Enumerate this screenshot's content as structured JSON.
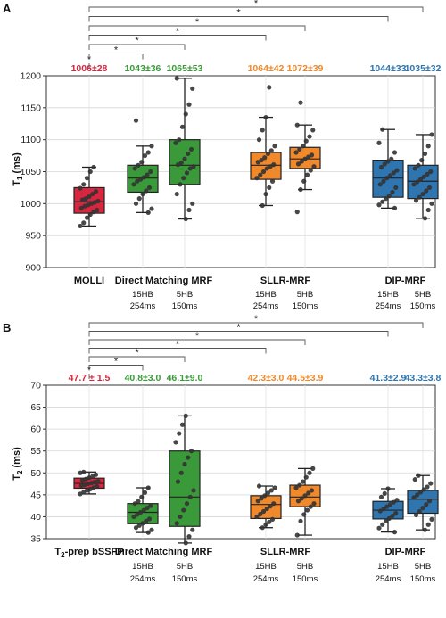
{
  "chart_data": [
    {
      "type": "box",
      "panel_label": "A",
      "ylabel_main": "T",
      "ylabel_sub": "1",
      "ylabel_unit": " (ms)",
      "ylim": [
        900,
        1200
      ],
      "yticks": [
        "900",
        "950",
        "1000",
        "1050",
        "1100",
        "1150",
        "1200"
      ],
      "grid": true,
      "groups": [
        {
          "label": "MOLLI"
        },
        {
          "label": "Direct Matching MRF"
        },
        {
          "label": "SLLR-MRF"
        },
        {
          "label": "DIP-MRF"
        }
      ],
      "boxes": [
        {
          "group": 0,
          "sub1": "",
          "sub2": "",
          "value_label": "1006±28",
          "color": "#d7263d",
          "whisker_low": 965,
          "q1": 985,
          "median": 1003,
          "q3": 1025,
          "whisker_high": 1057,
          "points": [
            965,
            970,
            978,
            983,
            987,
            990,
            993,
            996,
            998,
            1000,
            1002,
            1004,
            1006,
            1008,
            1011,
            1015,
            1019,
            1024,
            1030,
            1040,
            1050,
            1057
          ]
        },
        {
          "group": 1,
          "sub1": "15HB",
          "sub2": "254ms",
          "value_label": "1043±36",
          "color": "#3a9a3a",
          "whisker_low": 986,
          "q1": 1018,
          "median": 1040,
          "q3": 1060,
          "whisker_high": 1090,
          "points": [
            986,
            992,
            1000,
            1008,
            1015,
            1020,
            1025,
            1030,
            1035,
            1038,
            1041,
            1045,
            1050,
            1055,
            1060,
            1065,
            1075,
            1080,
            1090,
            1130
          ]
        },
        {
          "group": 1,
          "sub1": "5HB",
          "sub2": "150ms",
          "value_label": "1065±53",
          "color": "#3a9a3a",
          "whisker_low": 976,
          "q1": 1030,
          "median": 1060,
          "q3": 1100,
          "whisker_high": 1196,
          "points": [
            976,
            990,
            1000,
            1015,
            1030,
            1040,
            1048,
            1055,
            1058,
            1061,
            1064,
            1070,
            1078,
            1085,
            1095,
            1100,
            1120,
            1140,
            1155,
            1180,
            1196
          ]
        },
        {
          "group": 2,
          "sub1": "15HB",
          "sub2": "254ms",
          "value_label": "1064±42",
          "color": "#f0892b",
          "whisker_low": 997,
          "q1": 1038,
          "median": 1060,
          "q3": 1080,
          "whisker_high": 1135,
          "points": [
            997,
            1015,
            1025,
            1035,
            1040,
            1045,
            1050,
            1055,
            1058,
            1061,
            1065,
            1068,
            1072,
            1078,
            1083,
            1090,
            1100,
            1115,
            1135,
            1182
          ]
        },
        {
          "group": 2,
          "sub1": "5HB",
          "sub2": "150ms",
          "value_label": "1072±39",
          "color": "#f0892b",
          "whisker_low": 1022,
          "q1": 1055,
          "median": 1070,
          "q3": 1088,
          "whisker_high": 1123,
          "points": [
            987,
            1022,
            1035,
            1045,
            1052,
            1058,
            1062,
            1066,
            1070,
            1073,
            1076,
            1080,
            1085,
            1090,
            1098,
            1105,
            1115,
            1123,
            1158
          ]
        },
        {
          "group": 3,
          "sub1": "15HB",
          "sub2": "254ms",
          "value_label": "1044±33",
          "color": "#2f76b0",
          "whisker_low": 993,
          "q1": 1010,
          "median": 1040,
          "q3": 1068,
          "whisker_high": 1116,
          "points": [
            993,
            998,
            1003,
            1008,
            1012,
            1018,
            1025,
            1030,
            1035,
            1040,
            1044,
            1048,
            1052,
            1057,
            1062,
            1066,
            1070,
            1080,
            1095,
            1116
          ]
        },
        {
          "group": 3,
          "sub1": "5HB",
          "sub2": "150ms",
          "value_label": "1035±32",
          "color": "#2f76b0",
          "whisker_low": 977,
          "q1": 1008,
          "median": 1035,
          "q3": 1060,
          "whisker_high": 1108,
          "points": [
            977,
            990,
            1000,
            1005,
            1010,
            1015,
            1020,
            1025,
            1030,
            1034,
            1038,
            1042,
            1046,
            1050,
            1055,
            1060,
            1068,
            1078,
            1090,
            1108
          ]
        }
      ],
      "brackets": [
        {
          "from": 0,
          "to": 1,
          "label": "*"
        },
        {
          "from": 0,
          "to": 2,
          "label": "*"
        },
        {
          "from": 0,
          "to": 3,
          "label": "*"
        },
        {
          "from": 0,
          "to": 4,
          "label": "*"
        },
        {
          "from": 0,
          "to": 5,
          "label": "*"
        },
        {
          "from": 0,
          "to": 6,
          "label": "*"
        },
        {
          "from": 0,
          "to": 7,
          "label": "*"
        }
      ]
    },
    {
      "type": "box",
      "panel_label": "B",
      "ylabel_main": "T",
      "ylabel_sub": "2",
      "ylabel_unit": " (ms)",
      "ylim": [
        35,
        70
      ],
      "yticks": [
        "35",
        "40",
        "45",
        "50",
        "55",
        "60",
        "65",
        "70"
      ],
      "grid": true,
      "groups": [
        {
          "label": "T",
          "label_sub": "2",
          "label_rest": "-prep bSSFP"
        },
        {
          "label": "Direct Matching MRF"
        },
        {
          "label": "SLLR-MRF"
        },
        {
          "label": "DIP-MRF"
        }
      ],
      "boxes": [
        {
          "group": 0,
          "sub1": "",
          "sub2": "",
          "value_label": "47.7 ± 1.5",
          "color": "#d7263d",
          "whisker_low": 45.2,
          "q1": 46.5,
          "median": 47.6,
          "q3": 48.8,
          "whisker_high": 50.2,
          "points": [
            45.2,
            45.6,
            46.0,
            46.3,
            46.6,
            46.9,
            47.1,
            47.3,
            47.5,
            47.7,
            47.9,
            48.1,
            48.3,
            48.6,
            48.9,
            49.2,
            49.6,
            50.0,
            50.2
          ]
        },
        {
          "group": 1,
          "sub1": "15HB",
          "sub2": "254ms",
          "value_label": "40.8±3.0",
          "color": "#3a9a3a",
          "whisker_low": 36.4,
          "q1": 38.4,
          "median": 41.0,
          "q3": 43.0,
          "whisker_high": 46.6,
          "points": [
            36.4,
            37.0,
            37.5,
            38.0,
            38.5,
            39.0,
            39.5,
            40.0,
            40.5,
            41.0,
            41.5,
            42.0,
            42.5,
            43.0,
            43.5,
            44.5,
            45.5,
            46.6
          ]
        },
        {
          "group": 1,
          "sub1": "5HB",
          "sub2": "150ms",
          "value_label": "46.1±9.0",
          "color": "#3a9a3a",
          "whisker_low": 34.0,
          "q1": 37.8,
          "median": 44.5,
          "q3": 55.0,
          "whisker_high": 63.0,
          "points": [
            34.0,
            35.5,
            37.0,
            38.5,
            40.0,
            41.5,
            43.0,
            44.5,
            46.0,
            48.0,
            50.0,
            52.0,
            53.5,
            55.0,
            57.0,
            59.0,
            61.0,
            63.0
          ]
        },
        {
          "group": 2,
          "sub1": "15HB",
          "sub2": "254ms",
          "value_label": "42.3±3.0",
          "color": "#f0892b",
          "whisker_low": 37.5,
          "q1": 39.6,
          "median": 42.8,
          "q3": 44.8,
          "whisker_high": 47.0,
          "points": [
            37.5,
            38.2,
            38.8,
            39.4,
            40.0,
            40.6,
            41.2,
            41.8,
            42.4,
            43.0,
            43.6,
            44.2,
            44.8,
            45.4,
            46.0,
            46.6,
            47.0
          ]
        },
        {
          "group": 2,
          "sub1": "5HB",
          "sub2": "150ms",
          "value_label": "44.5±3.9",
          "color": "#f0892b",
          "whisker_low": 35.8,
          "q1": 42.3,
          "median": 44.5,
          "q3": 47.2,
          "whisker_high": 51.0,
          "points": [
            35.8,
            39.0,
            40.5,
            41.5,
            42.3,
            43.0,
            43.6,
            44.2,
            44.8,
            45.4,
            46.0,
            46.6,
            47.2,
            48.0,
            49.0,
            50.0,
            51.0
          ]
        },
        {
          "group": 3,
          "sub1": "15HB",
          "sub2": "254ms",
          "value_label": "41.3±2.9",
          "color": "#2f76b0",
          "whisker_low": 36.5,
          "q1": 39.5,
          "median": 41.5,
          "q3": 43.5,
          "whisker_high": 46.4,
          "points": [
            36.5,
            37.4,
            38.2,
            39.0,
            39.6,
            40.2,
            40.8,
            41.3,
            41.8,
            42.3,
            42.8,
            43.3,
            43.8,
            44.5,
            45.3,
            46.4
          ]
        },
        {
          "group": 3,
          "sub1": "5HB",
          "sub2": "150ms",
          "value_label": "43.3±3.8",
          "color": "#2f76b0",
          "whisker_low": 37.0,
          "q1": 40.8,
          "median": 44.0,
          "q3": 46.0,
          "whisker_high": 49.4,
          "points": [
            37.0,
            38.2,
            39.4,
            40.4,
            41.2,
            42.0,
            42.8,
            43.6,
            44.4,
            45.0,
            45.6,
            46.2,
            46.8,
            47.6,
            48.5,
            49.4
          ]
        }
      ],
      "brackets": [
        {
          "from": 0,
          "to": 1,
          "label": "*"
        },
        {
          "from": 0,
          "to": 2,
          "label": "*"
        },
        {
          "from": 0,
          "to": 3,
          "label": "*"
        },
        {
          "from": 0,
          "to": 4,
          "label": "*"
        },
        {
          "from": 0,
          "to": 5,
          "label": "*"
        },
        {
          "from": 0,
          "to": 6,
          "label": "*"
        },
        {
          "from": 0,
          "to": 7,
          "label": "*"
        }
      ]
    }
  ]
}
